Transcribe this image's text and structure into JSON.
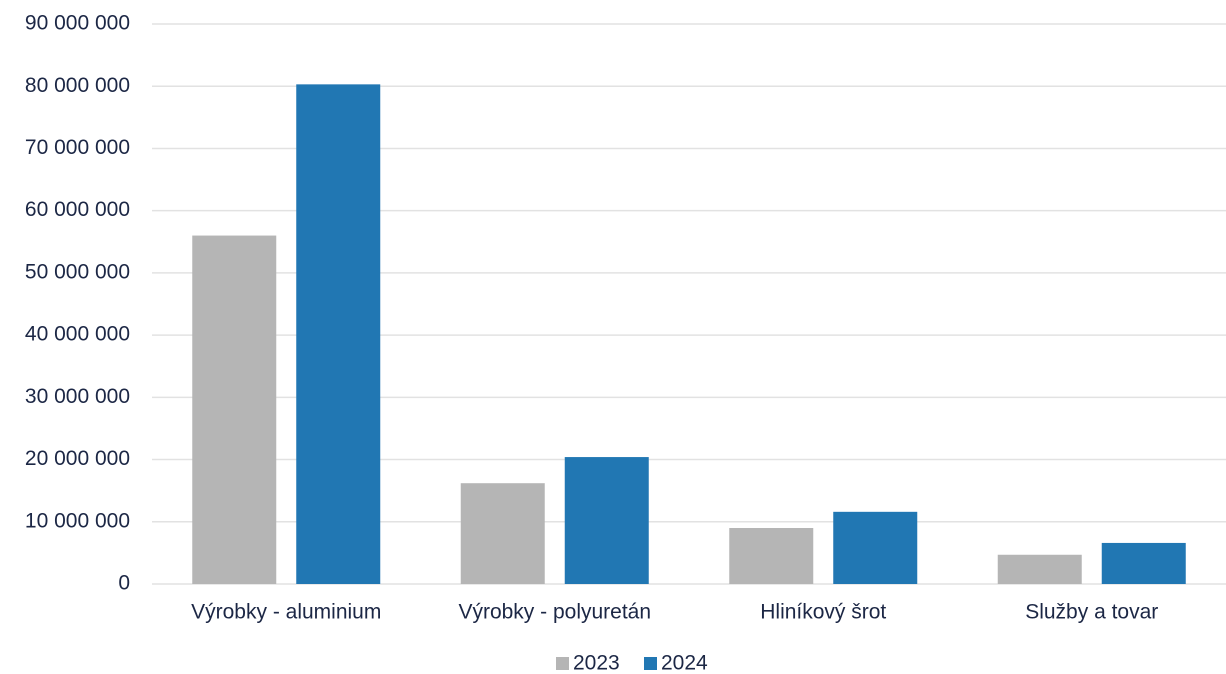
{
  "chart_data": {
    "type": "bar",
    "categories": [
      "Výrobky - aluminium",
      "Výrobky - polyuretán",
      "Hliníkový šrot",
      "Služby a tovar"
    ],
    "series": [
      {
        "name": "2023",
        "color": "#b5b5b5",
        "values": [
          56000000,
          16200000,
          9000000,
          4700000
        ]
      },
      {
        "name": "2024",
        "color": "#2177b3",
        "values": [
          80300000,
          20400000,
          11600000,
          6600000
        ]
      }
    ],
    "ylim": [
      0,
      90000000
    ],
    "yticks": [
      0,
      {
        "value": 10000000,
        "label": "10 000 000"
      },
      {
        "value": 20000000,
        "label": "20 000 000"
      },
      {
        "value": 30000000,
        "label": "30 000 000"
      },
      {
        "value": 40000000,
        "label": "40 000 000"
      },
      {
        "value": 50000000,
        "label": "50 000 000"
      },
      {
        "value": 60000000,
        "label": "60 000 000"
      },
      {
        "value": 70000000,
        "label": "70 000 000"
      },
      {
        "value": 80000000,
        "label": "80 000 000"
      },
      {
        "value": 90000000,
        "label": "90 000 000"
      }
    ],
    "grid": true,
    "legend": "bottom"
  }
}
